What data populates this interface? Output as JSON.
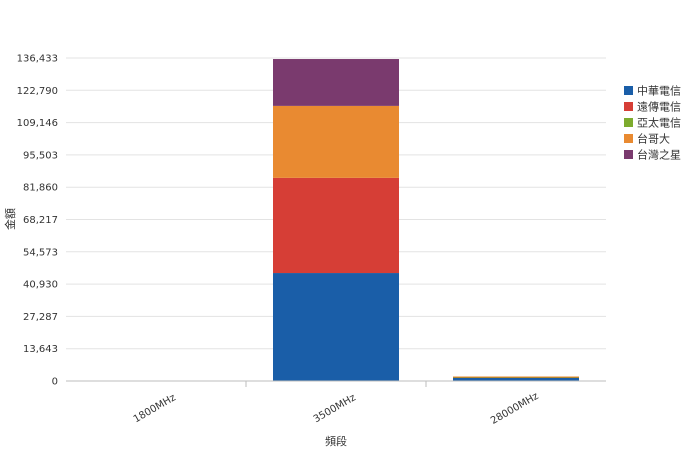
{
  "chart_data": {
    "type": "bar",
    "stacked": true,
    "xlabel": "頻段",
    "ylabel": "金額",
    "categories": [
      "1800MHz",
      "3500MHz",
      "28000MHz"
    ],
    "ylim": [
      0,
      136433
    ],
    "yticks": [
      "0",
      "13,643",
      "27,287",
      "40,930",
      "54,573",
      "68,217",
      "81,860",
      "95,503",
      "109,146",
      "122,790",
      "136,433"
    ],
    "grid": true,
    "legend_position": "right",
    "series": [
      {
        "name": "中華電信",
        "color": "#1a5ea8",
        "values": [
          0,
          45600,
          1300
        ]
      },
      {
        "name": "遠傳電信",
        "color": "#d63e36",
        "values": [
          0,
          40200,
          300
        ]
      },
      {
        "name": "亞太電信",
        "color": "#7dab2e",
        "values": [
          0,
          0,
          100
        ]
      },
      {
        "name": "台哥大",
        "color": "#e98a31",
        "values": [
          0,
          30400,
          200
        ]
      },
      {
        "name": "台灣之星",
        "color": "#7a3a6e",
        "values": [
          0,
          19800,
          0
        ]
      }
    ]
  }
}
